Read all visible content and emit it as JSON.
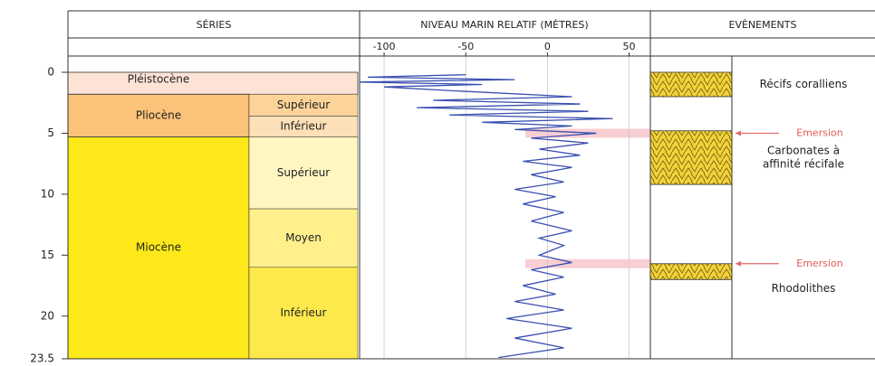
{
  "header": {
    "series": "SÉRIES",
    "sea_level": "NIVEAU MARIN RELATIF (MÈTRES)",
    "events": "EVÈNEMENTS"
  },
  "age_axis": {
    "lim": [
      0,
      23.5
    ],
    "ticks": [
      0,
      5,
      10,
      15,
      20,
      23.5
    ]
  },
  "sea_level": {
    "color": "#3a4fb0",
    "xlim": [
      -115,
      63
    ],
    "xticks": [
      -100,
      -50,
      0,
      50
    ],
    "age": [
      0.2,
      0.4,
      0.6,
      0.8,
      1.0,
      1.2,
      1.5,
      2.0,
      2.3,
      2.6,
      2.9,
      3.2,
      3.5,
      3.8,
      4.1,
      4.4,
      4.7,
      5.0,
      5.4,
      5.8,
      6.3,
      6.8,
      7.3,
      7.8,
      8.4,
      9.0,
      9.6,
      10.2,
      10.8,
      11.5,
      12.2,
      13.0,
      13.6,
      14.2,
      15.0,
      15.6,
      16.2,
      16.8,
      17.5,
      18.2,
      18.8,
      19.5,
      20.2,
      21.0,
      21.8,
      22.6,
      23.4
    ],
    "level": [
      -50,
      -110,
      -20,
      -115,
      -40,
      -100,
      -60,
      15,
      -70,
      20,
      -80,
      25,
      -60,
      40,
      -40,
      15,
      -20,
      30,
      -10,
      25,
      -5,
      20,
      -15,
      15,
      -10,
      10,
      -20,
      5,
      -15,
      10,
      -10,
      15,
      -5,
      10,
      -5,
      15,
      -10,
      10,
      -15,
      5,
      -20,
      10,
      -25,
      15,
      -20,
      10,
      -30
    ]
  },
  "epochs": [
    {
      "label": "Pléistocène",
      "start": 0,
      "end": 1.8,
      "color": "#fde3d6"
    },
    {
      "label": "Pliocène",
      "start": 1.8,
      "end": 5.3,
      "color": "#fbc27a"
    },
    {
      "label": "Miocène",
      "start": 5.3,
      "end": 23.5,
      "color": "#fde819"
    }
  ],
  "subepochs": [
    {
      "label": "Supérieur",
      "start": 1.8,
      "end": 3.6,
      "color": "#fcd49a"
    },
    {
      "label": "Inférieur",
      "start": 3.6,
      "end": 5.3,
      "color": "#fde0b8"
    },
    {
      "label": "Supérieur",
      "start": 5.3,
      "end": 11.2,
      "color": "#fff6c2"
    },
    {
      "label": "Moyen",
      "start": 11.2,
      "end": 16,
      "color": "#fff08c"
    },
    {
      "label": "Inférieur",
      "start": 16,
      "end": 23.5,
      "color": "#fee94c"
    }
  ],
  "events": [
    {
      "label": [
        "Récifs coralliens"
      ],
      "start": 0,
      "end": 2.0
    },
    {
      "label": [
        "Carbonates à",
        "affinité récifale"
      ],
      "start": 4.8,
      "end": 9.2
    },
    {
      "label": [
        "Rhodolithes"
      ],
      "start": 15.7,
      "end": 17.0
    }
  ],
  "emersions": [
    {
      "label": "Emersion",
      "age": 5.0
    },
    {
      "label": "Emersion",
      "age": 15.7
    }
  ]
}
